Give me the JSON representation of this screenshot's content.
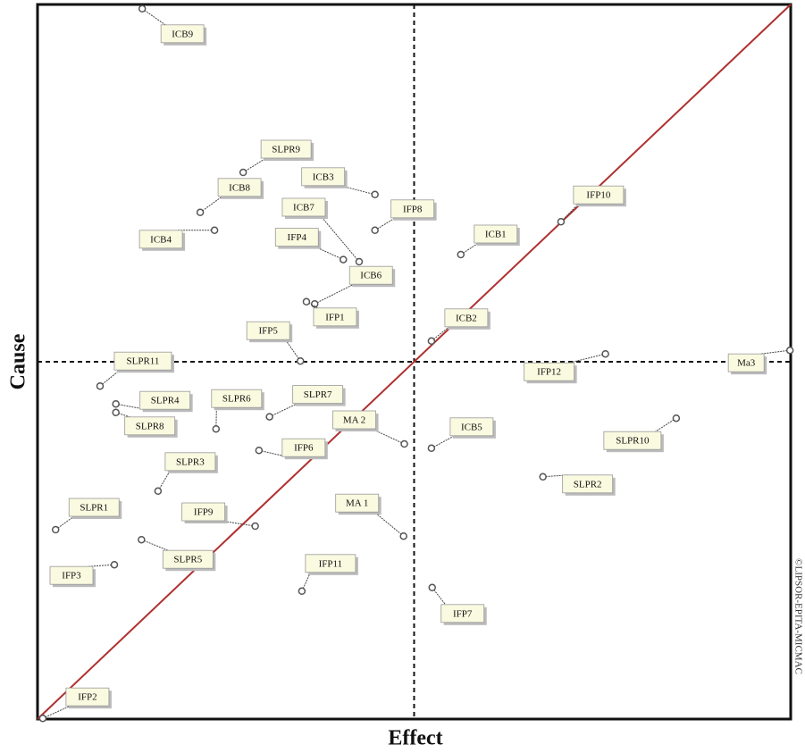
{
  "chart_data": {
    "type": "scatter",
    "x_label": "Effect",
    "y_label": "Cause",
    "credit": "©LIPSOR-EPITA-MICMAC",
    "xlim": [
      0,
      100
    ],
    "ylim": [
      0,
      100
    ],
    "quadrant_lines": {
      "x": 50,
      "y": 50
    },
    "diagonal_color": "#b03030",
    "point_color": "#555555",
    "label_fill": "#fafae0",
    "point_labels": [
      "ICB9",
      "SLPR9",
      "ICB8",
      "ICB3",
      "ICB7",
      "IFP8",
      "ICB4",
      "IFP4",
      "ICB6",
      "IFP1",
      "IFP10",
      "ICB1",
      "IFP5",
      "ICB2",
      "Ma3",
      "IFP12",
      "SLPR11",
      "SLPR4",
      "SLPR8",
      "SLPR6",
      "SLPR7",
      "MA 2",
      "ICB5",
      "IFP6",
      "SLPR10",
      "SLPR3",
      "SLPR2",
      "MA 1",
      "SLPR1",
      "IFP9",
      "SLPR5",
      "IFP11",
      "IFP3",
      "IFP7",
      "IFP2"
    ],
    "x": [
      13.9,
      27.3,
      21.6,
      44.8,
      42.7,
      44.8,
      23.5,
      40.6,
      36.8,
      35.7,
      69.5,
      56.2,
      34.9,
      52.3,
      99.9,
      75.4,
      8.3,
      10.4,
      10.4,
      23.7,
      30.8,
      48.7,
      52.3,
      29.4,
      84.8,
      16.0,
      67.1,
      48.6,
      2.4,
      28.9,
      13.8,
      35.1,
      10.2,
      52.4,
      0.7
    ],
    "values": [
      99.4,
      76.5,
      70.9,
      73.4,
      64.0,
      68.4,
      68.4,
      64.3,
      58.1,
      58.4,
      69.6,
      65.0,
      50.1,
      52.9,
      51.6,
      51.1,
      46.6,
      44.1,
      42.9,
      40.6,
      42.3,
      38.5,
      37.9,
      37.6,
      42.1,
      31.9,
      33.9,
      25.6,
      26.5,
      27.0,
      25.1,
      17.9,
      21.6,
      18.4,
      0.1
    ]
  }
}
